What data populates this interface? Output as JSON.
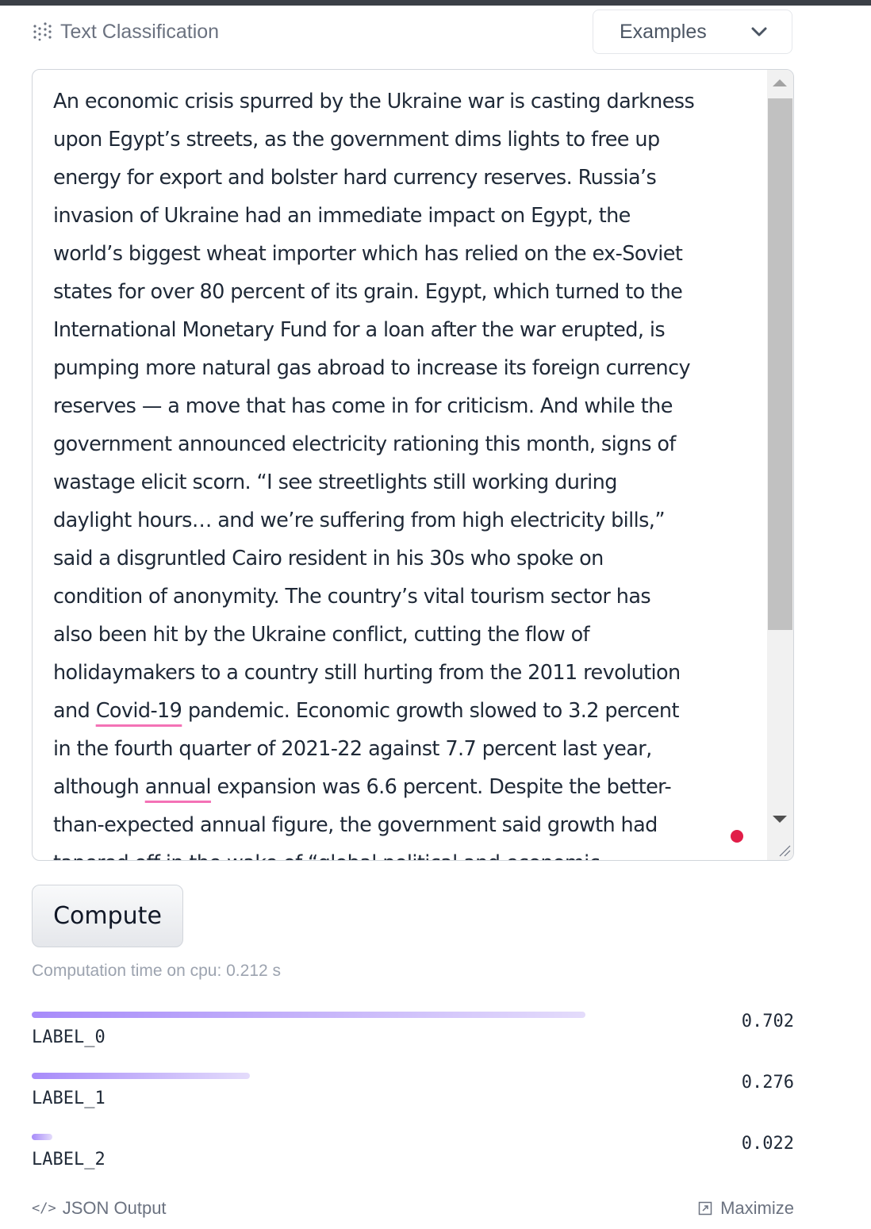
{
  "header": {
    "task_title": "Text Classification",
    "task_icon": "widget-grid-icon",
    "examples_label": "Examples"
  },
  "input": {
    "text": "An economic crisis spurred by the Ukraine war is casting darkness upon Egypt’s streets, as the government dims lights to free up energy for export and bolster hard currency reserves. Russia’s invasion of Ukraine had an immediate impact on Egypt, the world’s biggest wheat importer which has relied on the ex-Soviet states for over 80 percent of its grain. Egypt, which turned to the International Monetary Fund for a loan after the war erupted, is pumping more natural gas abroad to increase its foreign currency reserves — a move that has come in for criticism. And while the government announced electricity rationing this month, signs of wastage elicit scorn. “I see streetlights still working during daylight hours… and we’re suffering from high electricity bills,” said a disgruntled Cairo resident in his 30s who spoke on condition of anonymity. The country’s vital tourism sector has also been hit by the Ukraine conflict, cutting the flow of holidaymakers to a country still hurting from the 2011 revolution and Covid-19 pandemic. Economic growth slowed to 3.2 percent in the fourth quarter of 2021-22 against 7.7 percent last year, although annual expansion was 6.6 percent. Despite the better-than-expected annual figure, the government said growth had tapered off in the wake of “global political and economic",
    "segments": [
      "An economic crisis spurred by the Ukraine war is casting darkness\nupon Egypt’s streets, as the government dims lights to free up\nenergy for export and bolster hard currency reserves. Russia’s\ninvasion of Ukraine had an immediate impact on Egypt, the\nworld’s biggest wheat importer which has relied on the ex-Soviet\nstates for over 80 percent of its grain. Egypt, which turned to the\nInternational Monetary Fund for a loan after the war erupted, is\npumping more natural gas abroad to increase its foreign currency\nreserves — a move that has come in for criticism. And while the\ngovernment announced electricity rationing this month, signs of\nwastage elicit scorn. “I see streetlights still working during\ndaylight hours… and we’re suffering from high electricity bills,”\nsaid a disgruntled Cairo resident in his 30s who spoke on\ncondition of anonymity. The country’s vital tourism sector has\nalso been hit by the Ukraine conflict, cutting the flow of\nholidaymakers to a country still hurting from the 2011 revolution\nand ",
      "Covid-19",
      " pandemic. Economic growth slowed to 3.2 percent\nin the fourth quarter of 2021-22 against 7.7 percent last year,\nalthough ",
      "annual",
      " expansion was 6.6 percent. Despite the better-\nthan-expected annual figure, the government said growth had\ntapered off in the wake of “global political and economic"
    ]
  },
  "compute_label": "Compute",
  "computation_time": "Computation time on cpu: 0.212 s",
  "results": [
    {
      "label": "LABEL_0",
      "score_text": "0.702",
      "score": 0.702
    },
    {
      "label": "LABEL_1",
      "score_text": "0.276",
      "score": 0.276
    },
    {
      "label": "LABEL_2",
      "score_text": "0.022",
      "score": 0.022
    }
  ],
  "footer": {
    "json_output_label": "JSON Output",
    "maximize_label": "Maximize"
  },
  "colors": {
    "bar_start": "#a78bfa",
    "bar_end": "#e4dcfb",
    "spellcheck_underline": "#f472b6",
    "record_dot": "#e11d48"
  }
}
